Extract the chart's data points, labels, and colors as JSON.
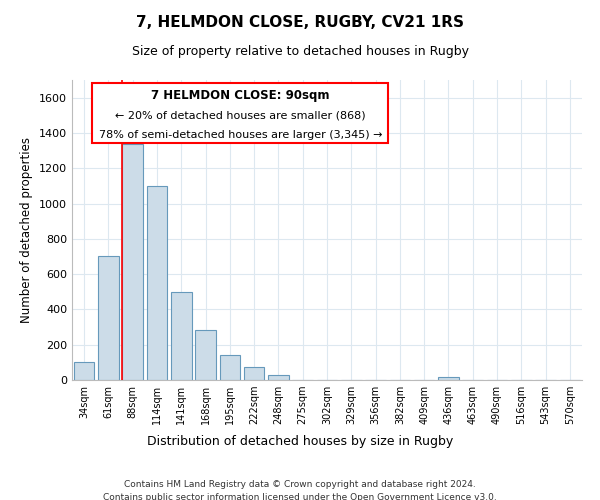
{
  "title": "7, HELMDON CLOSE, RUGBY, CV21 1RS",
  "subtitle": "Size of property relative to detached houses in Rugby",
  "xlabel": "Distribution of detached houses by size in Rugby",
  "ylabel": "Number of detached properties",
  "footer_line1": "Contains HM Land Registry data © Crown copyright and database right 2024.",
  "footer_line2": "Contains public sector information licensed under the Open Government Licence v3.0.",
  "bar_labels": [
    "34sqm",
    "61sqm",
    "88sqm",
    "114sqm",
    "141sqm",
    "168sqm",
    "195sqm",
    "222sqm",
    "248sqm",
    "275sqm",
    "302sqm",
    "329sqm",
    "356sqm",
    "382sqm",
    "409sqm",
    "436sqm",
    "463sqm",
    "490sqm",
    "516sqm",
    "543sqm",
    "570sqm"
  ],
  "bar_values": [
    100,
    700,
    1340,
    1100,
    500,
    285,
    140,
    75,
    30,
    0,
    0,
    0,
    0,
    0,
    0,
    15,
    0,
    0,
    0,
    0,
    0
  ],
  "bar_color": "#ccdce8",
  "bar_edge_color": "#6699bb",
  "property_line_index": 2,
  "property_line_color": "red",
  "ylim": [
    0,
    1700
  ],
  "yticks": [
    0,
    200,
    400,
    600,
    800,
    1000,
    1200,
    1400,
    1600
  ],
  "annotation_title": "7 HELMDON CLOSE: 90sqm",
  "annotation_line1": "← 20% of detached houses are smaller (868)",
  "annotation_line2": "78% of semi-detached houses are larger (3,345) →",
  "background_color": "#ffffff",
  "grid_color": "#dde8f0"
}
